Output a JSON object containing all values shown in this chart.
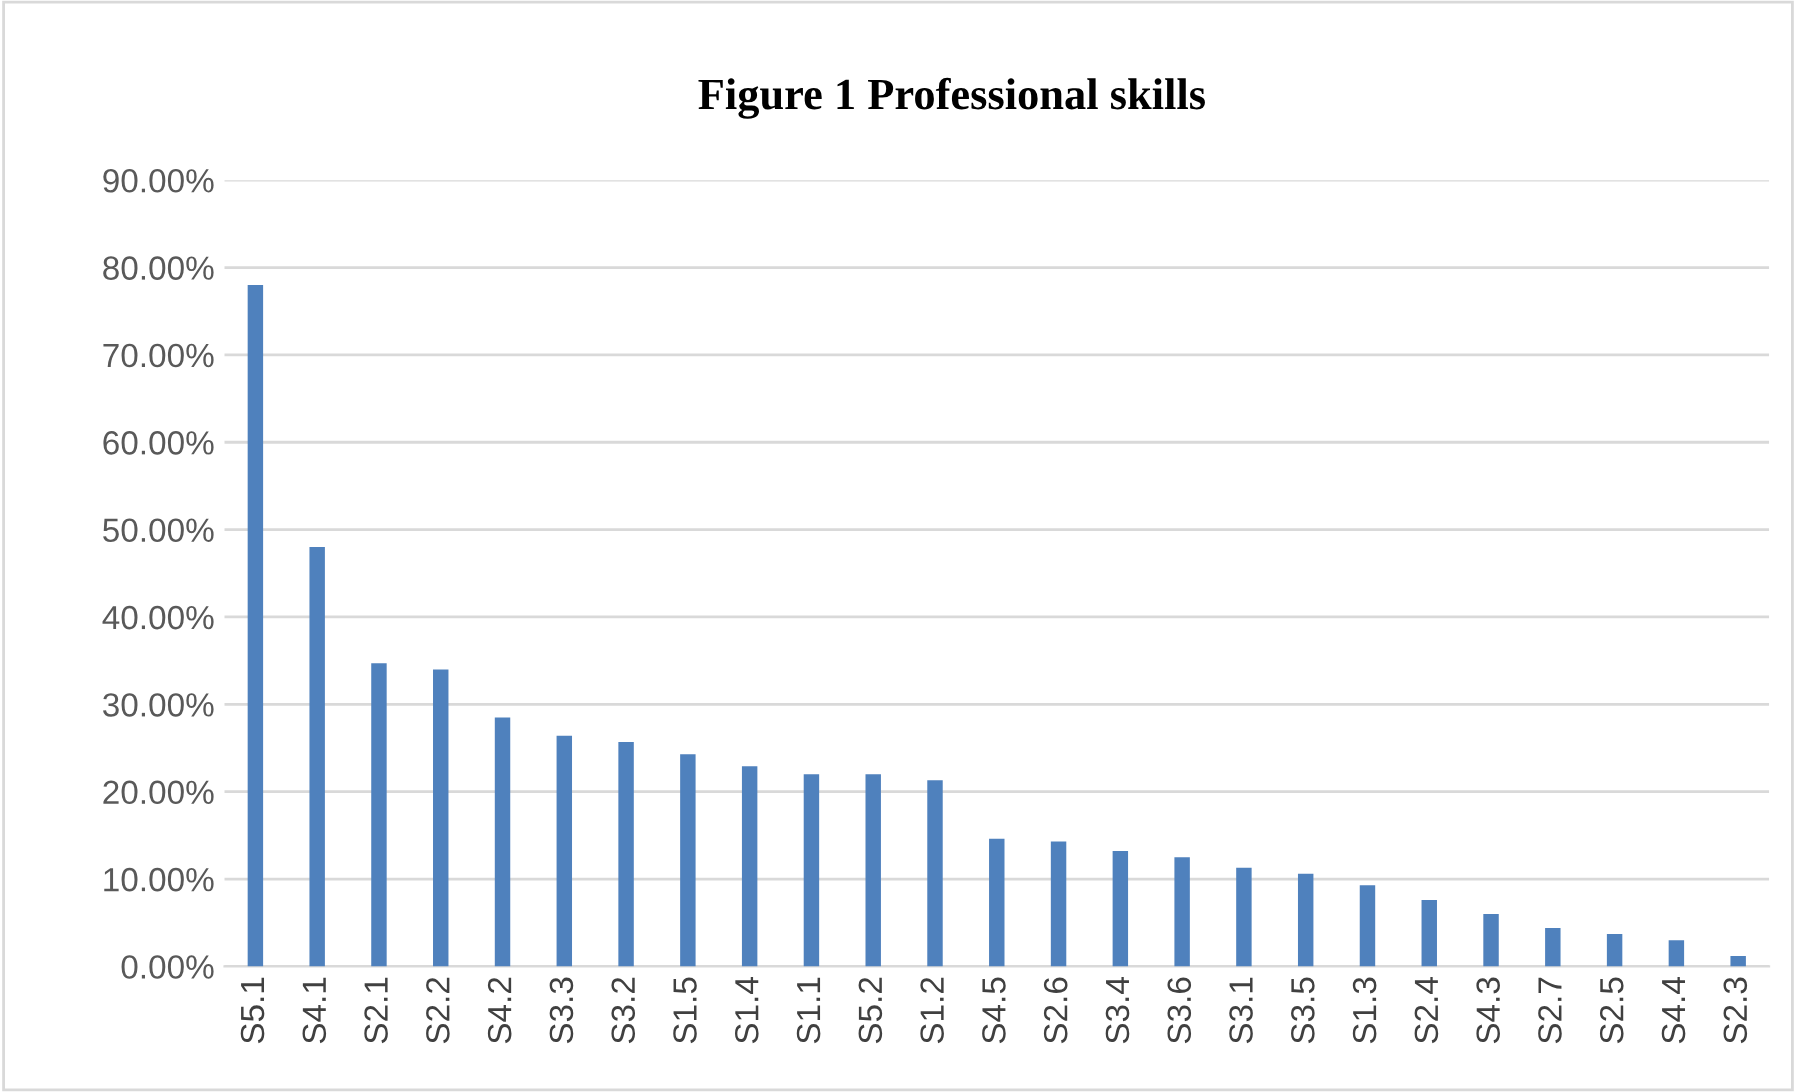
{
  "chart_data": {
    "type": "bar",
    "title": "Figure 1 Professional skills",
    "categories": [
      "S5.1",
      "S4.1",
      "S2.1",
      "S2.2",
      "S4.2",
      "S3.3",
      "S3.2",
      "S1.5",
      "S1.4",
      "S1.1",
      "S5.2",
      "S1.2",
      "S4.5",
      "S2.6",
      "S3.4",
      "S3.6",
      "S3.1",
      "S3.5",
      "S1.3",
      "S2.4",
      "S4.3",
      "S2.7",
      "S2.5",
      "S4.4",
      "S2.3"
    ],
    "values": [
      78.0,
      48.0,
      34.7,
      34.0,
      28.5,
      26.4,
      25.7,
      24.3,
      22.9,
      22.0,
      22.0,
      21.3,
      14.6,
      14.3,
      13.2,
      12.5,
      11.3,
      10.6,
      9.3,
      7.6,
      6.0,
      4.4,
      3.7,
      3.0,
      1.2
    ],
    "color": "#4f81bd",
    "ylim": [
      0,
      90
    ],
    "yticks": [
      {
        "value": 0,
        "label": "0.00%"
      },
      {
        "value": 10,
        "label": "10.00%"
      },
      {
        "value": 20,
        "label": "20.00%"
      },
      {
        "value": 30,
        "label": "30.00%"
      },
      {
        "value": 40,
        "label": "40.00%"
      },
      {
        "value": 50,
        "label": "50.00%"
      },
      {
        "value": 60,
        "label": "60.00%"
      },
      {
        "value": 70,
        "label": "70.00%"
      },
      {
        "value": 80,
        "label": "80.00%"
      },
      {
        "value": 90,
        "label": "90.00%"
      }
    ],
    "grid": "y"
  }
}
